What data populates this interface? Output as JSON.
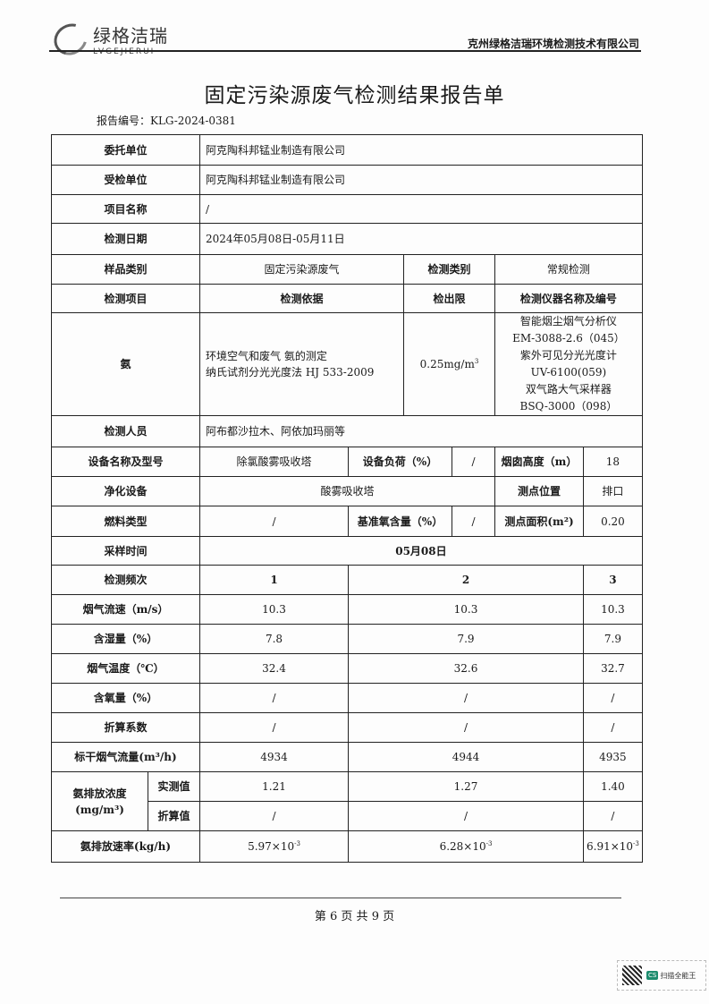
{
  "header": {
    "logo_cn": "绿格洁瑞",
    "logo_en": "LVGEJIERUI",
    "company": "克州绿格洁瑞环境检测技术有限公司"
  },
  "title": "固定污染源废气检测结果报告单",
  "report_no": "报告编号：KLG-2024-0381",
  "info": {
    "client_label": "委托单位",
    "client": "阿克陶科邦锰业制造有限公司",
    "inspected_label": "受检单位",
    "inspected": "阿克陶科邦锰业制造有限公司",
    "project_label": "项目名称",
    "project": "/",
    "date_label": "检测日期",
    "date": "2024年05月08日-05月11日",
    "sample_type_label": "样品类别",
    "sample_type": "固定污染源废气",
    "test_type_label": "检测类别",
    "test_type": "常规检测",
    "item_label": "检测项目",
    "basis_label": "检测依据",
    "limit_label": "检出限",
    "instrument_label": "检测仪器名称及编号",
    "item": "氨",
    "basis_line1": "环境空气和废气 氨的测定",
    "basis_line2": "纳氏试剂分光光度法 HJ 533-2009",
    "limit": "0.25mg/m",
    "limit_sup": "3",
    "instruments": [
      "智能烟尘烟气分析仪",
      "EM-3088-2.6（045）",
      "紫外可见分光光度计",
      "UV-6100(059)",
      "双气路大气采样器",
      "BSQ-3000（098）"
    ],
    "staff_label": "检测人员",
    "staff": "阿布都沙拉木、阿依加玛丽等",
    "equip_label": "设备名称及型号",
    "equip": "除氯酸雾吸收塔",
    "load_label": "设备负荷（%）",
    "load": "/",
    "stack_label": "烟囱高度（m）",
    "stack": "18",
    "purify_label": "净化设备",
    "purify": "酸雾吸收塔",
    "point_label": "测点位置",
    "point": "排口",
    "fuel_label": "燃料类型",
    "fuel": "/",
    "o2_label": "基准氧含量（%）",
    "o2": "/",
    "area_label": "测点面积(m²)",
    "area": "0.20",
    "sampling_label": "采样时间",
    "sampling": "05月08日"
  },
  "results": {
    "freq_label": "检测频次",
    "freq": [
      "1",
      "2",
      "3"
    ],
    "rows": [
      {
        "label": "烟气流速（m/s）",
        "values": [
          "10.3",
          "10.3",
          "10.3"
        ]
      },
      {
        "label": "含湿量（%）",
        "values": [
          "7.8",
          "7.9",
          "7.9"
        ]
      },
      {
        "label": "烟气温度（℃）",
        "values": [
          "32.4",
          "32.6",
          "32.7"
        ]
      },
      {
        "label": "含氧量（%）",
        "values": [
          "/",
          "/",
          "/"
        ]
      },
      {
        "label": "折算系数",
        "values": [
          "/",
          "/",
          "/"
        ]
      },
      {
        "label": "标干烟气流量(m³/h)",
        "values": [
          "4934",
          "4944",
          "4935"
        ]
      }
    ],
    "conc_label": "氨排放浓度",
    "conc_unit": "(mg/m³)",
    "measured_label": "实测值",
    "measured": [
      "1.21",
      "1.27",
      "1.40"
    ],
    "converted_label": "折算值",
    "converted": [
      "/",
      "/",
      "/"
    ],
    "rate_label": "氨排放速率(kg/h)",
    "rate": [
      "5.97×10",
      "6.28×10",
      "6.91×10"
    ],
    "rate_exp": "-3"
  },
  "footer": {
    "page": "第 6 页 共 9 页"
  },
  "scanner": {
    "badge": "CS",
    "name": "扫描全能王"
  }
}
